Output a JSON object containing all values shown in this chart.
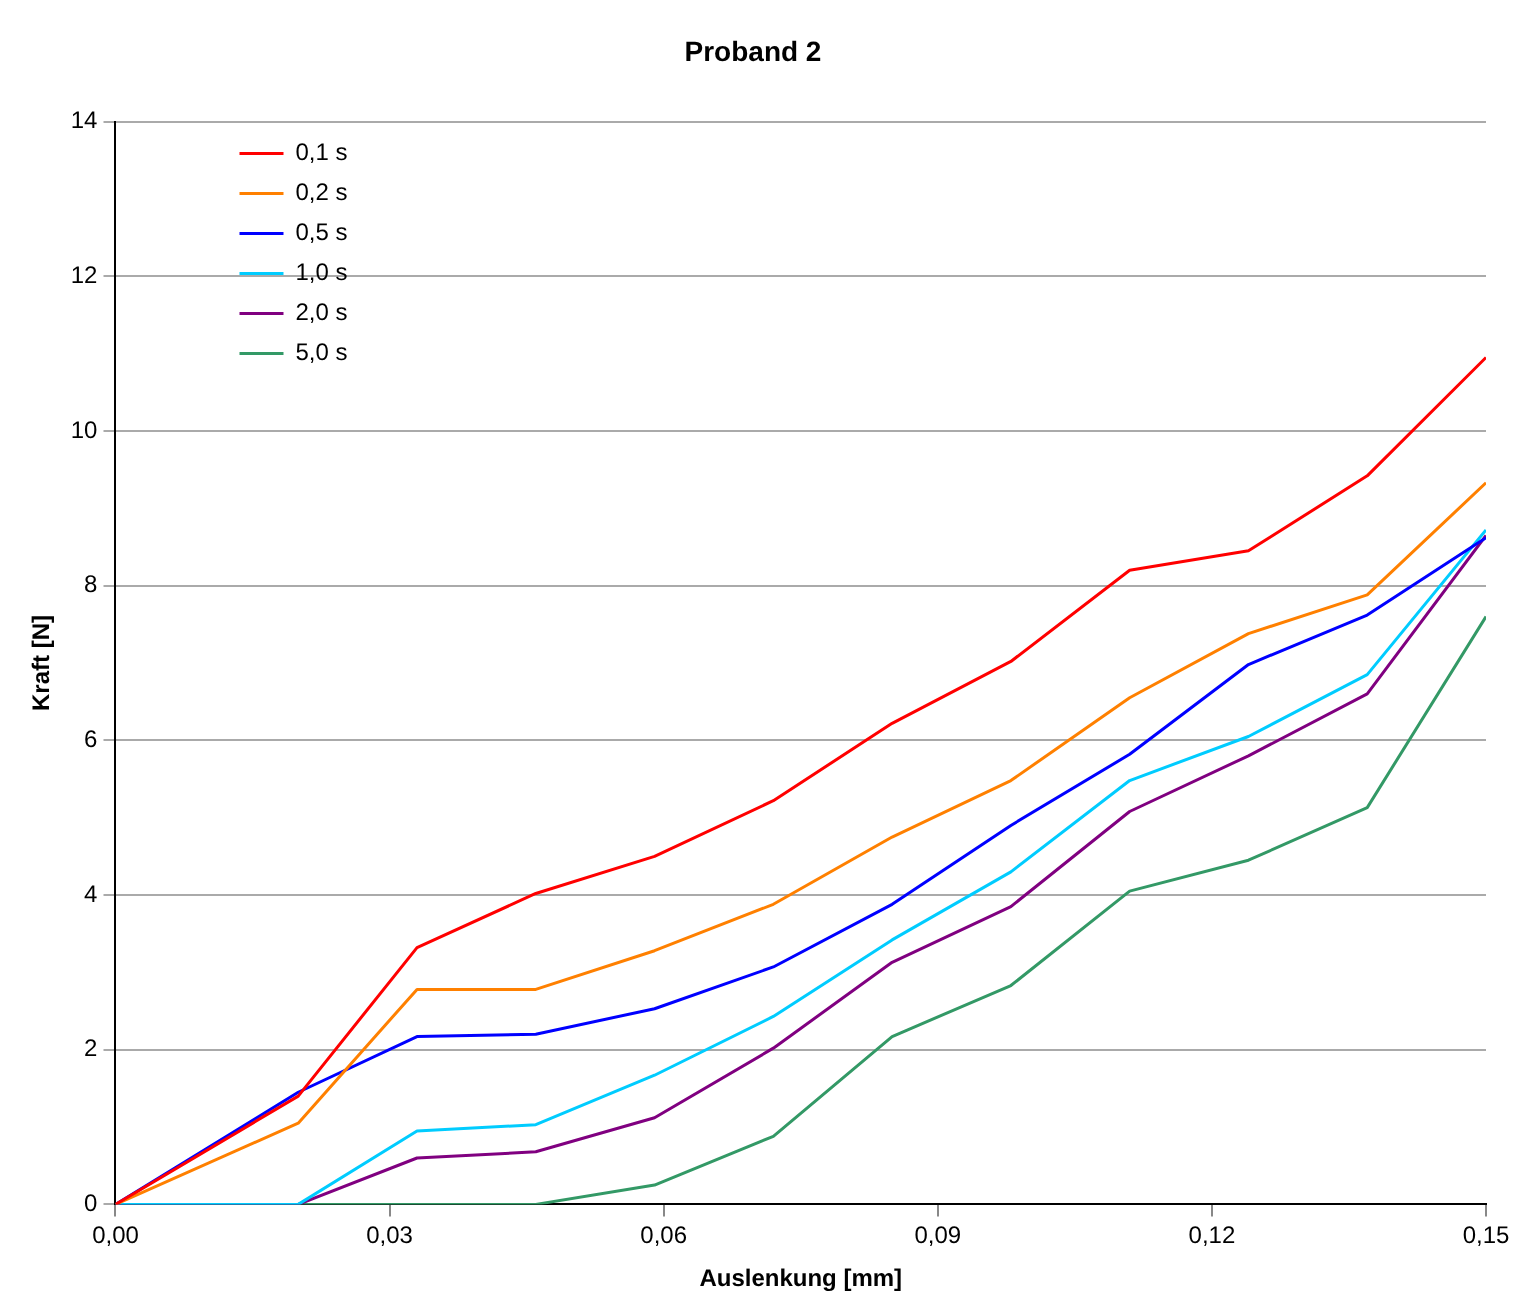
{
  "chart_data": {
    "type": "line",
    "title": "Proband 2",
    "xlabel": "Auslenkung [mm]",
    "ylabel": "Kraft [N]",
    "x": [
      0,
      0.02,
      0.033,
      0.046,
      0.059,
      0.072,
      0.085,
      0.098,
      0.111,
      0.124,
      0.137,
      0.15
    ],
    "series": [
      {
        "name": "0,1 s",
        "color": "#ff0000",
        "values": [
          0,
          1.4,
          3.32,
          4.02,
          4.5,
          5.22,
          6.22,
          7.02,
          8.2,
          8.45,
          9.42,
          10.95
        ]
      },
      {
        "name": "0,2 s",
        "color": "#ff8000",
        "values": [
          0,
          1.05,
          2.78,
          2.78,
          3.28,
          3.88,
          4.75,
          5.48,
          6.55,
          7.38,
          7.88,
          9.33
        ]
      },
      {
        "name": "0,5 s",
        "color": "#0000ff",
        "values": [
          0,
          1.45,
          2.17,
          2.2,
          2.53,
          3.07,
          3.88,
          4.9,
          5.82,
          6.98,
          7.62,
          8.62
        ]
      },
      {
        "name": "1,0 s",
        "color": "#00ccff",
        "values": [
          0,
          0,
          0.95,
          1.03,
          1.67,
          2.43,
          3.42,
          4.3,
          5.48,
          6.05,
          6.85,
          8.72
        ]
      },
      {
        "name": "2,0 s",
        "color": "#800080",
        "values": [
          0,
          0,
          0.6,
          0.68,
          1.12,
          2.02,
          3.13,
          3.85,
          5.08,
          5.8,
          6.6,
          8.65
        ]
      },
      {
        "name": "5,0 s",
        "color": "#339966",
        "values": [
          0,
          0,
          0,
          0,
          0.25,
          0.88,
          2.17,
          2.83,
          4.05,
          4.45,
          5.13,
          7.6
        ]
      }
    ],
    "xlim": [
      0,
      0.15
    ],
    "xticks": [
      {
        "value": 0,
        "label": "0,00"
      },
      {
        "value": 0.03,
        "label": "0,03"
      },
      {
        "value": 0.06,
        "label": "0,06"
      },
      {
        "value": 0.09,
        "label": "0,09"
      },
      {
        "value": 0.12,
        "label": "0,12"
      },
      {
        "value": 0.15,
        "label": "0,15"
      }
    ],
    "ylim": [
      0,
      14
    ],
    "yticks": [
      0,
      2,
      4,
      6,
      8,
      10,
      12,
      14
    ],
    "grid": "y",
    "legend": "top left",
    "marker": "none",
    "line_style": "solid"
  }
}
